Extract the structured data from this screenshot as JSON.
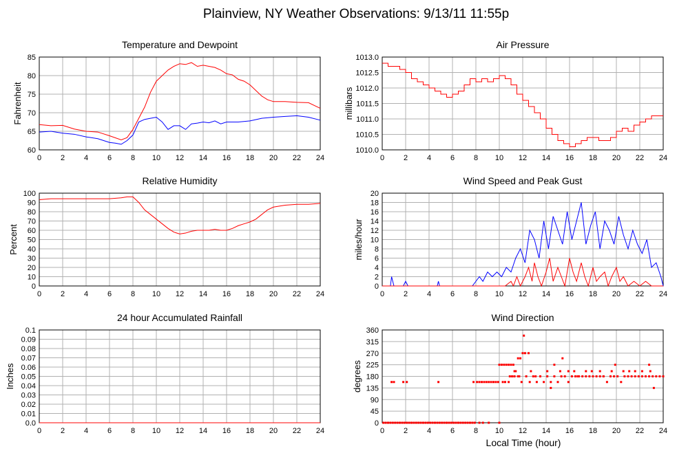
{
  "page_title": "Plainview, NY Weather Observations: 9/13/11 11:55p",
  "x_axis_label": "Local Time (hour)",
  "colors": {
    "red": "#ff0000",
    "blue": "#0000ff",
    "grid": "#b0b0b0"
  },
  "chart_data": [
    {
      "id": "temp",
      "type": "line",
      "title": "Temperature and Dewpoint",
      "ylabel": "Fahrenheit",
      "xlim": [
        0,
        24
      ],
      "ylim": [
        60,
        85
      ],
      "xticks": [
        0,
        2,
        4,
        6,
        8,
        10,
        12,
        14,
        16,
        18,
        20,
        22,
        24
      ],
      "yticks": [
        60,
        65,
        70,
        75,
        80,
        85
      ],
      "ytick_labels": [
        "60",
        "65",
        "70",
        "75",
        "80",
        "85"
      ],
      "series": [
        {
          "color": "#ff0000",
          "x": [
            0,
            1,
            2,
            3,
            4,
            5,
            6,
            7,
            7.5,
            8,
            8.5,
            9,
            9.5,
            10,
            10.5,
            11,
            11.5,
            12,
            12.5,
            13,
            13.5,
            14,
            14.5,
            15,
            15.5,
            16,
            16.5,
            17,
            17.5,
            18,
            18.5,
            19,
            19.5,
            20,
            21,
            22,
            23,
            24
          ],
          "y": [
            66.8,
            66.5,
            66.6,
            65.6,
            65,
            64.8,
            63.8,
            62.7,
            63.3,
            65.5,
            68.5,
            71.5,
            75.5,
            78.5,
            80,
            81.5,
            82.5,
            83.2,
            83,
            83.5,
            82.5,
            82.8,
            82.5,
            82.2,
            81.5,
            80.5,
            80.2,
            79,
            78.5,
            77.5,
            76,
            74.5,
            73.5,
            73,
            73,
            72.8,
            72.7,
            71.2
          ]
        },
        {
          "color": "#0000ff",
          "x": [
            0,
            1,
            2,
            3,
            4,
            5,
            5.5,
            6,
            6.5,
            7,
            7.5,
            8,
            8.5,
            9,
            9.5,
            10,
            10.5,
            11,
            11.5,
            12,
            12.5,
            13,
            13.5,
            14,
            14.5,
            15,
            15.5,
            16,
            17,
            18,
            19,
            20,
            21,
            22,
            23,
            24
          ],
          "y": [
            64.8,
            65,
            64.5,
            64.2,
            63.5,
            63,
            62.5,
            62,
            61.8,
            61.5,
            62.5,
            64,
            67.5,
            68.2,
            68.5,
            68.8,
            67.5,
            65.5,
            66.5,
            66.5,
            65.5,
            67,
            67.2,
            67.5,
            67.3,
            67.8,
            67,
            67.5,
            67.5,
            67.8,
            68.5,
            68.8,
            69,
            69.2,
            68.8,
            68
          ]
        }
      ]
    },
    {
      "id": "pressure",
      "type": "line",
      "title": "Air Pressure",
      "ylabel": "millibars",
      "xlim": [
        0,
        24
      ],
      "ylim": [
        1010,
        1013
      ],
      "xticks": [
        0,
        2,
        4,
        6,
        8,
        10,
        12,
        14,
        16,
        18,
        20,
        22,
        24
      ],
      "yticks": [
        1010,
        1010.5,
        1011,
        1011.5,
        1012,
        1012.5,
        1013
      ],
      "ytick_labels": [
        "1010.0",
        "1010.5",
        "1011.0",
        "1011.5",
        "1012.0",
        "1012.5",
        "1013.0"
      ],
      "series": [
        {
          "color": "#ff0000",
          "step": true,
          "x": [
            0,
            0.5,
            1.5,
            2,
            2.5,
            3,
            3.5,
            4,
            4.5,
            5,
            5.5,
            6,
            6.5,
            7,
            7.5,
            8,
            8.5,
            9,
            9.5,
            10,
            10.5,
            11,
            11.5,
            12,
            12.5,
            13,
            13.5,
            14,
            14.5,
            15,
            15.5,
            16,
            16.5,
            17,
            17.5,
            18,
            18.5,
            19,
            19.5,
            20,
            20.5,
            21,
            21.5,
            22,
            22.5,
            23,
            24
          ],
          "y": [
            1012.8,
            1012.7,
            1012.6,
            1012.5,
            1012.3,
            1012.2,
            1012.1,
            1012.0,
            1011.9,
            1011.8,
            1011.7,
            1011.8,
            1011.9,
            1012.1,
            1012.3,
            1012.2,
            1012.3,
            1012.2,
            1012.3,
            1012.4,
            1012.3,
            1012.1,
            1011.8,
            1011.6,
            1011.4,
            1011.2,
            1011.0,
            1010.7,
            1010.5,
            1010.3,
            1010.2,
            1010.1,
            1010.2,
            1010.3,
            1010.4,
            1010.4,
            1010.3,
            1010.3,
            1010.4,
            1010.6,
            1010.7,
            1010.6,
            1010.8,
            1010.9,
            1011.0,
            1011.1,
            1011.1
          ]
        }
      ]
    },
    {
      "id": "humidity",
      "type": "line",
      "title": "Relative Humidity",
      "ylabel": "Percent",
      "xlim": [
        0,
        24
      ],
      "ylim": [
        0,
        100
      ],
      "xticks": [
        0,
        2,
        4,
        6,
        8,
        10,
        12,
        14,
        16,
        18,
        20,
        22,
        24
      ],
      "yticks": [
        0,
        10,
        20,
        30,
        40,
        50,
        60,
        70,
        80,
        90,
        100
      ],
      "ytick_labels": [
        "0",
        "10",
        "20",
        "30",
        "40",
        "50",
        "60",
        "70",
        "80",
        "90",
        "100"
      ],
      "series": [
        {
          "color": "#ff0000",
          "x": [
            0,
            1,
            2,
            3,
            4,
            5,
            6,
            7,
            7.5,
            8,
            8.5,
            9,
            9.5,
            10,
            10.5,
            11,
            11.5,
            12,
            12.5,
            13,
            13.5,
            14,
            14.5,
            15,
            15.5,
            16,
            16.5,
            17,
            17.5,
            18,
            18.5,
            19,
            19.5,
            20,
            21,
            22,
            23,
            24
          ],
          "y": [
            93,
            94,
            94,
            94,
            94,
            94,
            94,
            95,
            96,
            96,
            90,
            82,
            77,
            72,
            67,
            62,
            58,
            56,
            57,
            59,
            60,
            60,
            60,
            61,
            60,
            60,
            62,
            65,
            67,
            69,
            72,
            77,
            82,
            85,
            87,
            88,
            88,
            89
          ]
        }
      ]
    },
    {
      "id": "wind",
      "type": "line",
      "title": "Wind Speed and Peak Gust",
      "ylabel": "miles/hour",
      "xlim": [
        0,
        24
      ],
      "ylim": [
        0,
        20
      ],
      "xticks": [
        0,
        2,
        4,
        6,
        8,
        10,
        12,
        14,
        16,
        18,
        20,
        22,
        24
      ],
      "yticks": [
        0,
        2,
        4,
        6,
        8,
        10,
        12,
        14,
        16,
        18,
        20
      ],
      "ytick_labels": [
        "0",
        "2",
        "4",
        "6",
        "8",
        "10",
        "12",
        "14",
        "16",
        "18",
        "20"
      ],
      "series": [
        {
          "color": "#0000ff",
          "x": [
            0,
            0.7,
            0.8,
            1.0,
            1.8,
            2.0,
            2.2,
            2.4,
            4.7,
            4.8,
            4.9,
            7.7,
            8.0,
            8.3,
            8.6,
            9.0,
            9.4,
            9.8,
            10.2,
            10.6,
            11.0,
            11.4,
            11.8,
            12.2,
            12.6,
            13.0,
            13.4,
            13.8,
            14.2,
            14.6,
            15.0,
            15.4,
            15.8,
            16.2,
            16.6,
            17.0,
            17.4,
            17.8,
            18.2,
            18.6,
            19.0,
            19.4,
            19.8,
            20.2,
            20.6,
            21.0,
            21.4,
            21.8,
            22.2,
            22.6,
            23.0,
            23.4,
            23.8,
            24
          ],
          "y": [
            0,
            0,
            2,
            0,
            0,
            1,
            0,
            0,
            0,
            1,
            0,
            0,
            1,
            2,
            1,
            3,
            2,
            3,
            2,
            4,
            3,
            6,
            8,
            5,
            12,
            10,
            6,
            14,
            8,
            15,
            12,
            9,
            16,
            10,
            14,
            18,
            9,
            13,
            16,
            8,
            14,
            12,
            9,
            15,
            11,
            8,
            12,
            9,
            7,
            10,
            4,
            5,
            2,
            0
          ]
        },
        {
          "color": "#ff0000",
          "x": [
            0,
            10.5,
            11.0,
            11.2,
            11.5,
            11.8,
            12.0,
            12.2,
            12.5,
            12.8,
            13.0,
            13.3,
            13.6,
            14.0,
            14.3,
            14.6,
            15.0,
            15.3,
            15.6,
            16.0,
            16.3,
            16.6,
            17.0,
            17.3,
            17.6,
            18.0,
            18.3,
            18.6,
            19.0,
            19.3,
            19.6,
            20.0,
            20.3,
            20.6,
            21.0,
            21.5,
            22.0,
            22.5,
            23.0,
            23.5,
            24
          ],
          "y": [
            0,
            0,
            1,
            0,
            2,
            0,
            1,
            2,
            4,
            1,
            5,
            2,
            0,
            3,
            6,
            1,
            4,
            2,
            0,
            6,
            3,
            1,
            5,
            2,
            0,
            4,
            1,
            2,
            3,
            0,
            2,
            4,
            1,
            2,
            0,
            1,
            0,
            1,
            0,
            0,
            0
          ]
        }
      ]
    },
    {
      "id": "rain",
      "type": "line",
      "title": "24 hour Accumulated Rainfall",
      "ylabel": "Inches",
      "xlim": [
        0,
        24
      ],
      "ylim": [
        0,
        0.1
      ],
      "xticks": [
        0,
        2,
        4,
        6,
        8,
        10,
        12,
        14,
        16,
        18,
        20,
        22,
        24
      ],
      "yticks": [
        0,
        0.01,
        0.02,
        0.03,
        0.04,
        0.05,
        0.06,
        0.07,
        0.08,
        0.09,
        0.1
      ],
      "ytick_labels": [
        "0.0",
        "0.01",
        "0.02",
        "0.03",
        "0.04",
        "0.05",
        "0.06",
        "0.07",
        "0.08",
        "0.09",
        "0.1"
      ],
      "series": [
        {
          "color": "#ff0000",
          "x": [
            0,
            24
          ],
          "y": [
            0,
            0
          ]
        }
      ]
    },
    {
      "id": "direction",
      "type": "scatter",
      "title": "Wind Direction",
      "ylabel": "degrees",
      "xlim": [
        0,
        24
      ],
      "ylim": [
        0,
        360
      ],
      "xticks": [
        0,
        2,
        4,
        6,
        8,
        10,
        12,
        14,
        16,
        18,
        20,
        22,
        24
      ],
      "yticks": [
        0,
        45,
        90,
        135,
        180,
        225,
        270,
        315,
        360
      ],
      "ytick_labels": [
        "0",
        "45",
        "90",
        "135",
        "180",
        "225",
        "270",
        "315",
        "360"
      ],
      "series": [
        {
          "color": "#ff0000",
          "x": [
            0.1,
            0.3,
            0.5,
            0.7,
            0.9,
            1.1,
            1.3,
            1.5,
            1.7,
            1.9,
            2.1,
            2.3,
            2.5,
            2.7,
            2.9,
            3.1,
            3.3,
            3.5,
            3.7,
            3.9,
            4.1,
            4.3,
            4.5,
            4.7,
            4.9,
            5.1,
            5.3,
            5.5,
            5.7,
            5.9,
            6.1,
            6.3,
            6.5,
            6.7,
            6.9,
            7.1,
            7.3,
            7.5,
            7.7,
            7.9,
            8.3,
            8.6,
            9.1,
            10.0,
            0.8,
            1.0,
            1.8,
            2.1,
            4.8,
            7.8,
            8.1,
            8.3,
            8.5,
            8.7,
            8.9,
            9.1,
            9.3,
            9.5,
            9.7,
            9.9,
            10.3,
            10.5,
            10.8,
            11.1,
            11.3,
            11.6,
            11.9,
            12.3,
            12.6,
            12.9,
            13.2,
            13.5,
            13.8,
            14.1,
            14.4,
            14.7,
            15.0,
            15.3,
            15.6,
            15.9,
            16.2,
            16.5,
            16.8,
            17.1,
            17.4,
            17.7,
            18.0,
            18.3,
            18.6,
            18.9,
            19.2,
            19.5,
            19.8,
            20.1,
            20.4,
            20.7,
            21.0,
            21.3,
            21.6,
            21.9,
            22.2,
            22.5,
            22.8,
            23.1,
            23.4,
            23.7,
            24.0,
            10.0,
            10.2,
            10.4,
            10.6,
            10.8,
            11.0,
            11.2,
            12.0,
            12.2,
            12.5,
            11.6,
            12.1,
            11.3,
            11.4,
            11.8,
            12.7,
            13.5,
            14.1,
            15.2,
            16.4,
            17.9,
            18.6,
            19.6,
            21.1,
            22.2,
            22.9,
            10.9,
            11.1,
            11.7,
            13.1,
            14.4,
            14.7,
            15.4,
            15.9,
            16.7,
            17.4,
            18.9,
            19.9,
            20.6,
            21.6,
            22.8,
            23.2
          ],
          "y": [
            0,
            0,
            0,
            0,
            0,
            0,
            0,
            0,
            0,
            0,
            0,
            0,
            0,
            0,
            0,
            0,
            0,
            0,
            0,
            0,
            0,
            0,
            0,
            0,
            0,
            0,
            0,
            0,
            0,
            0,
            0,
            0,
            0,
            0,
            0,
            0,
            0,
            0,
            0,
            0,
            0,
            0,
            0,
            0,
            158,
            158,
            158,
            158,
            158,
            158,
            158,
            158,
            158,
            158,
            158,
            158,
            158,
            158,
            158,
            158,
            158,
            158,
            158,
            180,
            180,
            180,
            158,
            180,
            158,
            180,
            158,
            180,
            158,
            180,
            158,
            180,
            158,
            180,
            180,
            158,
            180,
            180,
            180,
            180,
            180,
            180,
            180,
            180,
            180,
            180,
            158,
            180,
            180,
            180,
            158,
            180,
            180,
            180,
            180,
            180,
            180,
            180,
            180,
            180,
            180,
            180,
            180,
            225,
            225,
            225,
            225,
            225,
            225,
            225,
            270,
            270,
            270,
            250,
            338,
            200,
            200,
            250,
            200,
            180,
            200,
            200,
            200,
            200,
            200,
            200,
            200,
            200,
            200,
            180,
            180,
            180,
            180,
            135,
            225,
            250,
            200,
            180,
            200,
            180,
            225,
            200,
            200,
            225,
            135
          ]
        }
      ]
    }
  ]
}
